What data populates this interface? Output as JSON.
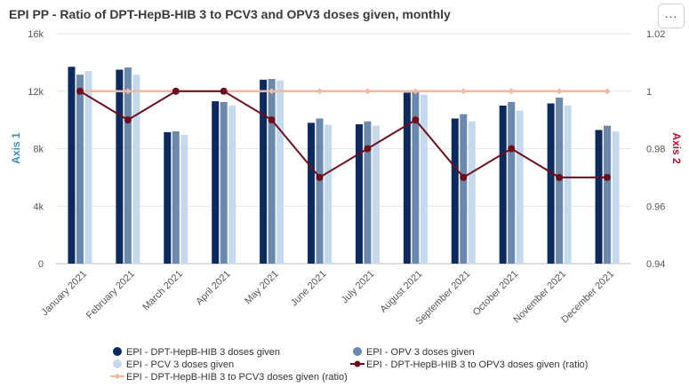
{
  "header": {
    "title": "EPI PP - Ratio of DPT-HepB-HIB 3 to PCV3 and OPV3 doses given, monthly",
    "menu_icon": "ellipsis-icon",
    "menu_glyph": "..."
  },
  "colors": {
    "dpt": "#0d2a5e",
    "opv": "#6b88ad",
    "pcv": "#c5d9ee",
    "ratio_opv": "#6e0d1c",
    "ratio_pcv": "#f3b9a0",
    "axis1_title": "#3d8fbf",
    "axis2_title": "#b2182b"
  },
  "chart_data": {
    "type": "bar",
    "categories": [
      "January 2021",
      "February 2021",
      "March 2021",
      "April 2021",
      "May 2021",
      "June 2021",
      "July 2021",
      "August 2021",
      "September 2021",
      "October 2021",
      "November 2021",
      "December 2021"
    ],
    "series": [
      {
        "name": "EPI - DPT-HepB-HIB 3 doses given",
        "type": "bar",
        "axis": 1,
        "values": [
          13700,
          13500,
          9150,
          11300,
          12800,
          9800,
          9700,
          11900,
          10100,
          11000,
          11150,
          9300
        ]
      },
      {
        "name": "EPI - OPV 3 doses given",
        "type": "bar",
        "axis": 1,
        "values": [
          13150,
          13650,
          9200,
          11250,
          12850,
          10100,
          9900,
          12000,
          10400,
          11250,
          11550,
          9600
        ]
      },
      {
        "name": "EPI - PCV 3 doses given",
        "type": "bar",
        "axis": 1,
        "values": [
          13400,
          13150,
          8950,
          11000,
          12750,
          9650,
          9600,
          11750,
          9900,
          10650,
          11000,
          9200
        ]
      },
      {
        "name": "EPI - DPT-HepB-HIB 3 to OPV3 doses given (ratio)",
        "type": "line",
        "axis": 2,
        "values": [
          1.0,
          0.99,
          1.0,
          1.0,
          0.99,
          0.97,
          0.98,
          0.99,
          0.97,
          0.98,
          0.97,
          0.97
        ]
      },
      {
        "name": "EPI - DPT-HepB-HIB 3 to PCV3 doses given (ratio)",
        "type": "line",
        "axis": 2,
        "values": [
          1.0,
          1.0,
          1.0,
          1.0,
          1.0,
          1.0,
          1.0,
          1.0,
          1.0,
          1.0,
          1.0,
          1.0
        ]
      }
    ],
    "axis1": {
      "title": "Axis 1",
      "ylim": [
        0,
        16000
      ],
      "ticks": [
        "0",
        "4k",
        "8k",
        "12k",
        "16k"
      ],
      "tick_values": [
        0,
        4000,
        8000,
        12000,
        16000
      ]
    },
    "axis2": {
      "title": "Axis 2",
      "ylim": [
        0.94,
        1.02
      ],
      "ticks": [
        "0.94",
        "0.96",
        "0.98",
        "1",
        "1.02"
      ],
      "tick_values": [
        0.94,
        0.96,
        0.98,
        1.0,
        1.02
      ]
    },
    "legend_position": "bottom",
    "grid": true
  }
}
